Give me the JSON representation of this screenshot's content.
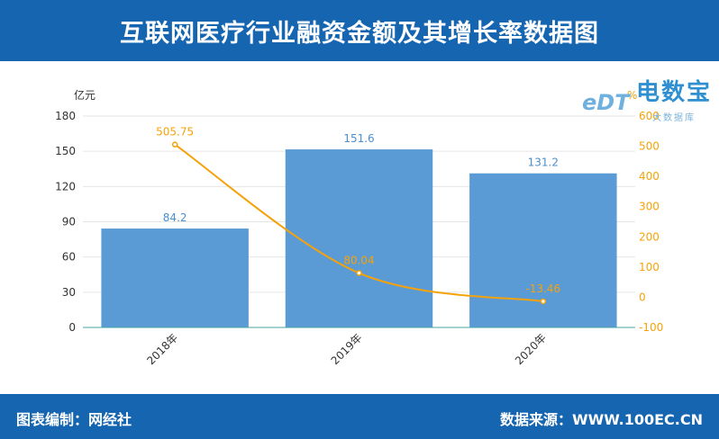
{
  "header": {
    "title": "互联网医疗行业融资金额及其增长率数据图"
  },
  "footer": {
    "left_text": "图表编制：网经社",
    "right_text": "数据来源：WWW.100EC.CN"
  },
  "watermark": {
    "brand": "电数宝",
    "sub": "大数据库",
    "mark": "eDT"
  },
  "colors": {
    "header_bg": "#1565b0",
    "bar": "#5b9bd5",
    "line": "#f5a20a",
    "grid": "#e6e6e6"
  },
  "chart_data": {
    "type": "bar",
    "categories": [
      "2018年",
      "2019年",
      "2020年"
    ],
    "series": [
      {
        "type": "bar",
        "axis": "left",
        "values": [
          84.2,
          151.6,
          131.2
        ],
        "labels": [
          "84.2",
          "151.6",
          "131.2"
        ]
      },
      {
        "type": "line",
        "axis": "right",
        "smooth": true,
        "values": [
          505.75,
          80.04,
          -13.46
        ],
        "labels": [
          "505.75",
          "80.04",
          "-13.46"
        ]
      }
    ],
    "y_left": {
      "unit": "亿元",
      "min": 0,
      "max": 180,
      "ticks": [
        "0",
        "30",
        "60",
        "90",
        "120",
        "150",
        "180"
      ]
    },
    "y_right": {
      "unit": "%",
      "min": -100,
      "max": 600,
      "ticks": [
        "-100",
        "0",
        "100",
        "200",
        "300",
        "400",
        "500",
        "600"
      ]
    },
    "grid": true
  }
}
